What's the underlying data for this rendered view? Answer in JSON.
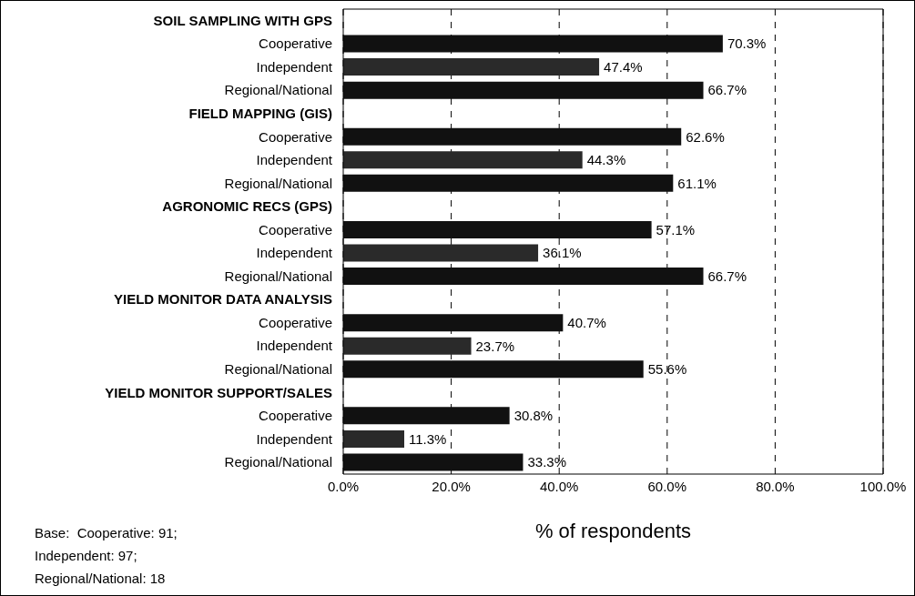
{
  "chart_data": {
    "type": "bar",
    "orientation": "horizontal",
    "categories": [
      "SOIL SAMPLING WITH GPS",
      "Cooperative",
      "Independent",
      "Regional/National",
      "FIELD MAPPING (GIS)",
      "Cooperative",
      "Independent",
      "Regional/National",
      "AGRONOMIC RECS (GPS)",
      "Cooperative",
      "Independent",
      "Regional/National",
      "YIELD MONITOR DATA ANALYSIS",
      "Cooperative",
      "Independent",
      "Regional/National",
      "YIELD MONITOR SUPPORT/SALES",
      "Cooperative",
      "Independent",
      "Regional/National"
    ],
    "values": [
      null,
      70.3,
      47.4,
      66.7,
      null,
      62.6,
      44.3,
      61.1,
      null,
      57.1,
      36.1,
      66.7,
      null,
      40.7,
      23.7,
      55.6,
      null,
      30.8,
      11.3,
      33.3
    ],
    "value_labels": [
      null,
      "70.3%",
      "47.4%",
      "66.7%",
      null,
      "62.6%",
      "44.3%",
      "61.1%",
      null,
      "57.1%",
      "36.1%",
      "66.7%",
      null,
      "40.7%",
      "23.7%",
      "55.6%",
      null,
      "30.8%",
      "11.3%",
      "33.3%"
    ],
    "colors": [
      "#111111",
      "#111111",
      "#2a2a2a",
      "#111111",
      "#111111",
      "#111111",
      "#2a2a2a",
      "#111111",
      "#111111",
      "#111111",
      "#2a2a2a",
      "#111111",
      "#111111",
      "#111111",
      "#2a2a2a",
      "#111111",
      "#111111",
      "#111111",
      "#2a2a2a",
      "#111111"
    ],
    "xlabel": "% of respondents",
    "xlim": [
      0,
      100
    ],
    "xticks": [
      {
        "value": 0,
        "label": "0.0%"
      },
      {
        "value": 20,
        "label": "20.0%"
      },
      {
        "value": 40,
        "label": "40.0%"
      },
      {
        "value": 60,
        "label": "60.0%"
      },
      {
        "value": 80,
        "label": "80.0%"
      },
      {
        "value": 100,
        "label": "100.0%"
      }
    ],
    "grid": "x",
    "annotations": [
      "Base:  Cooperative: 91;",
      "Independent: 97;",
      "Regional/National: 18"
    ]
  }
}
